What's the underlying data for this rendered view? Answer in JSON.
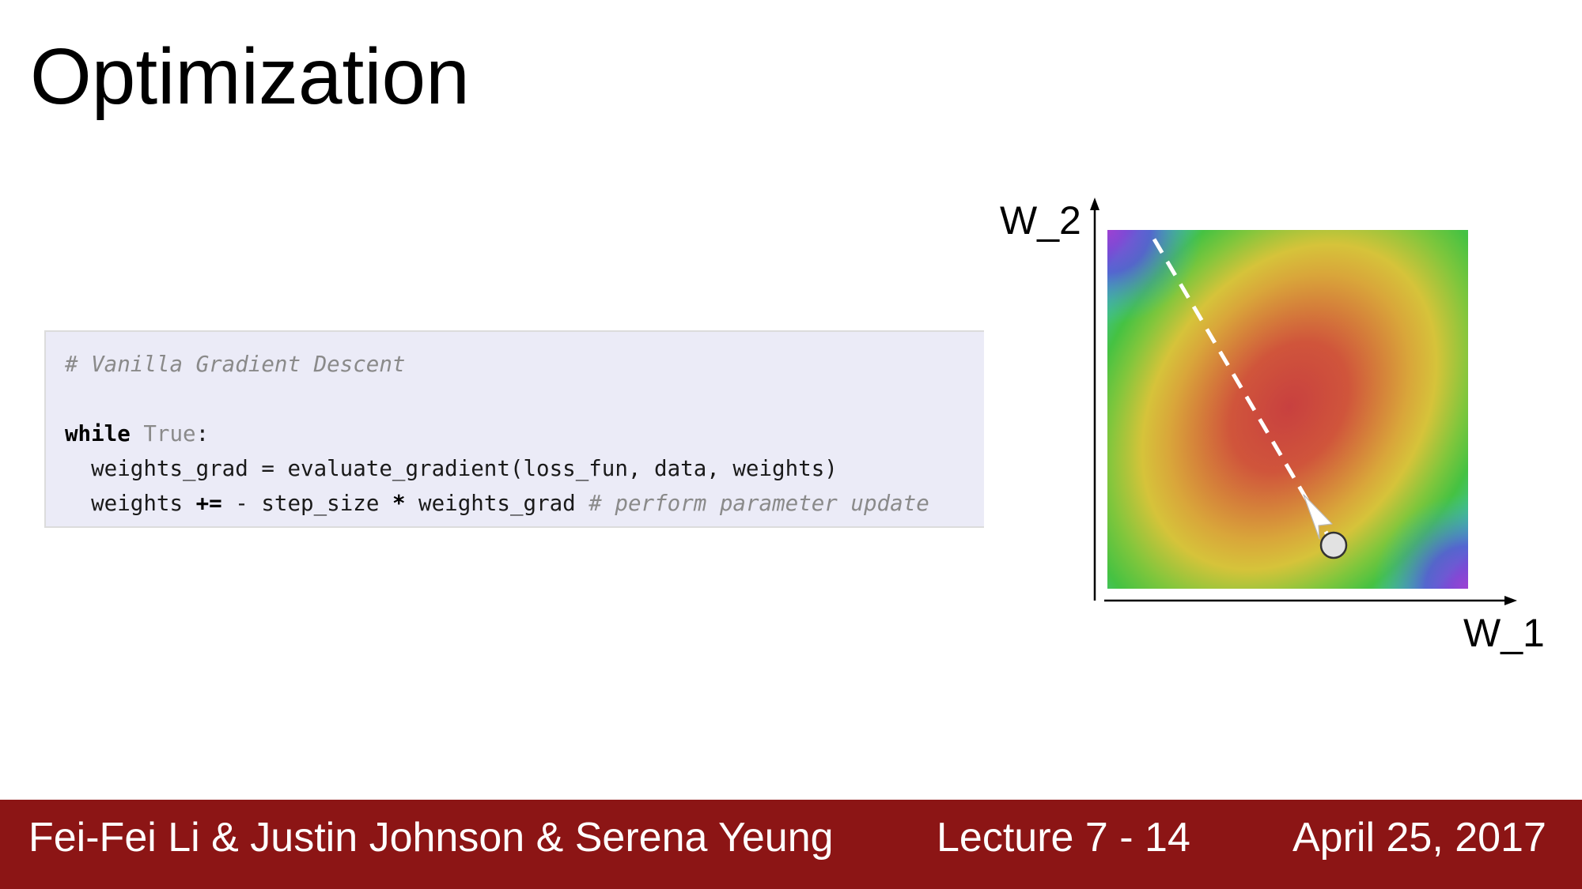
{
  "slide": {
    "title": "Optimization"
  },
  "code": {
    "comment_header": "# Vanilla Gradient Descent",
    "kw_while": "while",
    "const_true": "True",
    "colon": ":",
    "line3": "  weights_grad = evaluate_gradient(loss_fun, data, weights)",
    "line4_pre": "  weights ",
    "line4_op": "+=",
    "line4_mid": " - step_size ",
    "line4_star": "*",
    "line4_post": " weights_grad ",
    "line4_comment": "# perform parameter update"
  },
  "diagram": {
    "y_axis_label": "W_2",
    "x_axis_label": "W_1",
    "colors": {
      "minimum": "#c8403f",
      "ring_yellow": "#d6c33a",
      "ring_green": "#45c242",
      "corner_cyan": "#3bbfc0",
      "corner_violet": "#8a3fd9"
    },
    "path": {
      "style": "dashed",
      "color": "#ffffff",
      "marker_icon": "white-circle"
    }
  },
  "footer": {
    "authors": "Fei-Fei Li & Justin Johnson & Serena Yeung",
    "lecture": "Lecture 7 - 14",
    "date": "April 25, 2017",
    "color": "#8c1515"
  }
}
